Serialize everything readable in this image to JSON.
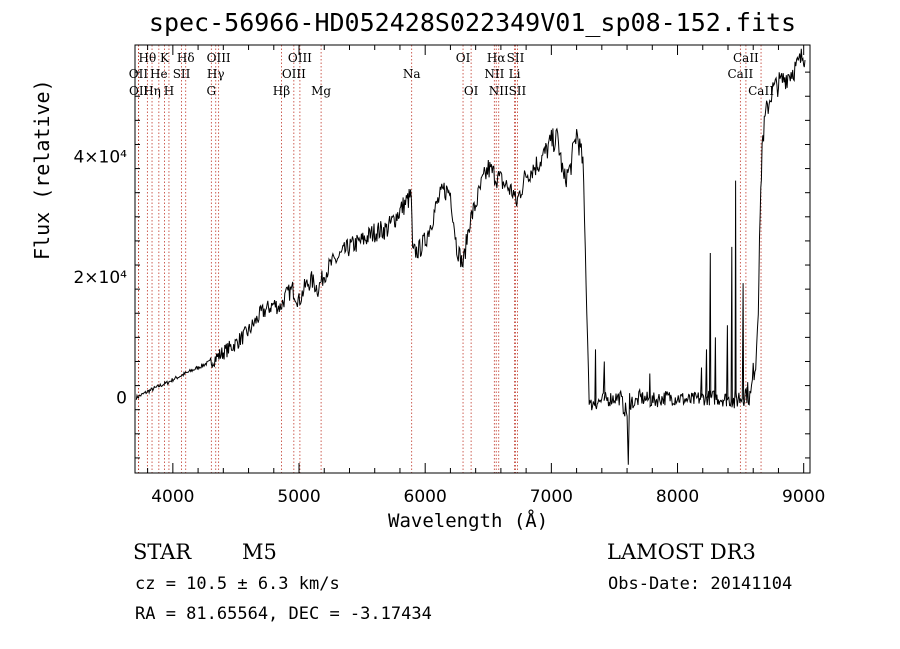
{
  "figure": {
    "title": "spec-56966-HD052428S022349V01_sp08-152.fits",
    "object_class": "STAR",
    "subclass": "M5",
    "redshift_text": "cz = 10.5 ± 6.3 km/s",
    "coords_text": "RA =  81.65564, DEC =  -3.17434",
    "survey": "LAMOST DR3",
    "obs_date": "Obs-Date: 20141104"
  },
  "chart_data": {
    "type": "line",
    "xlabel": "Wavelength (Å)",
    "ylabel": "Flux (relative)",
    "xlim": [
      3700,
      9050
    ],
    "ylim": [
      -12500,
      58500
    ],
    "xticks": [
      4000,
      5000,
      6000,
      7000,
      8000,
      9000
    ],
    "yticks": [
      {
        "value": 0,
        "label": "0"
      },
      {
        "value": 20000,
        "label": "2×10⁴"
      },
      {
        "value": 40000,
        "label": "4×10⁴"
      }
    ],
    "grid": false,
    "line_colors": {
      "spectrum": "#000000",
      "lines": "#c0392b"
    },
    "spectrum_nodes": {
      "x": [
        3710,
        3800,
        3900,
        3960,
        4000,
        4100,
        4200,
        4300,
        4400,
        4500,
        4600,
        4700,
        4800,
        4850,
        4900,
        4950,
        5000,
        5050,
        5100,
        5150,
        5200,
        5250,
        5300,
        5400,
        5500,
        5600,
        5700,
        5800,
        5850,
        5890,
        5900,
        5950,
        6000,
        6100,
        6150,
        6200,
        6250,
        6300,
        6350,
        6400,
        6450,
        6500,
        6550,
        6600,
        6650,
        6700,
        6720,
        6750,
        6800,
        6850,
        6900,
        6950,
        7000,
        7050,
        7100,
        7150,
        7200,
        7250,
        7300,
        7310,
        7320,
        7400,
        7500,
        7550,
        7570,
        7600,
        7610,
        7620,
        7630,
        7640,
        7660,
        7680,
        7700,
        7800,
        7900,
        8000,
        8100,
        8200,
        8300,
        8400,
        8450,
        8480,
        8500,
        8520,
        8550,
        8580,
        8600,
        8620,
        8640,
        8650,
        8660,
        8670,
        8700,
        8750,
        8800,
        8850,
        8900,
        8950,
        9000,
        9010
      ],
      "y": [
        0,
        1000,
        2000,
        2500,
        3000,
        4000,
        5000,
        6000,
        7500,
        9000,
        11000,
        14000,
        15500,
        15000,
        17000,
        18000,
        16000,
        18500,
        19500,
        18000,
        20500,
        22000,
        23000,
        25000,
        26000,
        27500,
        28000,
        31000,
        32500,
        33500,
        24000,
        24500,
        26000,
        32500,
        34500,
        34000,
        25000,
        22000,
        29000,
        32000,
        35500,
        38000,
        37000,
        36000,
        35000,
        34000,
        32000,
        34000,
        37000,
        38000,
        39000,
        40500,
        42500,
        43000,
        36000,
        38000,
        44000,
        39000,
        0,
        -1500,
        -1000,
        -500,
        0,
        0,
        -1500,
        -2500,
        -12000,
        0,
        -1000,
        -500,
        -1000,
        -500,
        0,
        -500,
        0,
        0,
        -500,
        0,
        0,
        -300,
        -500,
        0,
        0,
        500,
        1000,
        0,
        4000,
        6000,
        15000,
        28000,
        33000,
        42000,
        47000,
        51000,
        52000,
        53000,
        54000,
        55000,
        57000,
        56000
      ]
    },
    "spectral_lines": [
      {
        "label": "Hθ",
        "wavelength": 3798,
        "row": 0
      },
      {
        "label": "OII",
        "wavelength": 3727,
        "row": 1
      },
      {
        "label": "OII",
        "wavelength": 3729,
        "row": 2
      },
      {
        "label": "K",
        "wavelength": 3934,
        "row": 0
      },
      {
        "label": "He",
        "wavelength": 3889,
        "row": 1
      },
      {
        "label": "Hη",
        "wavelength": 3835,
        "row": 2
      },
      {
        "label": "Hδ",
        "wavelength": 4102,
        "row": 0
      },
      {
        "label": "SII",
        "wavelength": 4069,
        "row": 1
      },
      {
        "label": "H",
        "wavelength": 3969,
        "row": 2
      },
      {
        "label": "OIII",
        "wavelength": 4363,
        "row": 0
      },
      {
        "label": "Hγ",
        "wavelength": 4340,
        "row": 1
      },
      {
        "label": "G",
        "wavelength": 4305,
        "row": 2
      },
      {
        "label": "OIII",
        "wavelength": 5007,
        "row": 0
      },
      {
        "label": "OIII",
        "wavelength": 4959,
        "row": 1
      },
      {
        "label": "Hβ",
        "wavelength": 4861,
        "row": 2
      },
      {
        "label": "Mg",
        "wavelength": 5175,
        "row": 2
      },
      {
        "label": "Na",
        "wavelength": 5893,
        "row": 1
      },
      {
        "label": "OI",
        "wavelength": 6300,
        "row": 0
      },
      {
        "label": "OI",
        "wavelength": 6364,
        "row": 2
      },
      {
        "label": "Hα",
        "wavelength": 6563,
        "row": 0
      },
      {
        "label": "NII",
        "wavelength": 6548,
        "row": 1
      },
      {
        "label": "NII",
        "wavelength": 6583,
        "row": 2
      },
      {
        "label": "SII",
        "wavelength": 6716,
        "row": 0
      },
      {
        "label": "Li",
        "wavelength": 6708,
        "row": 1
      },
      {
        "label": "SII",
        "wavelength": 6731,
        "row": 2
      },
      {
        "label": "CaII",
        "wavelength": 8542,
        "row": 0
      },
      {
        "label": "CaII",
        "wavelength": 8498,
        "row": 1
      },
      {
        "label": "CaII",
        "wavelength": 8662,
        "row": 2
      }
    ]
  }
}
